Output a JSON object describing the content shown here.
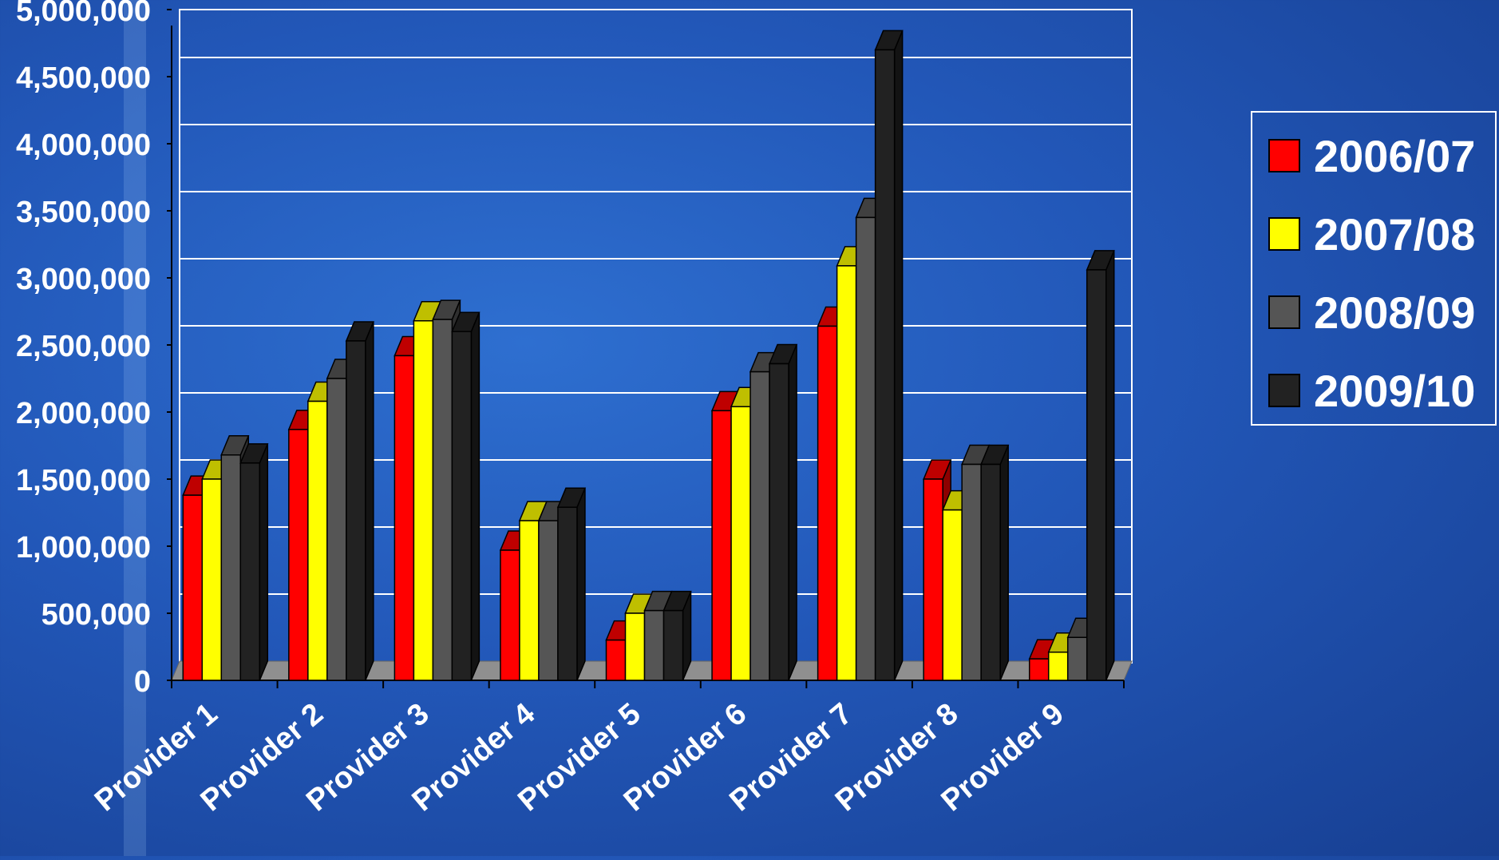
{
  "chart_data": {
    "type": "bar",
    "title": "",
    "xlabel": "",
    "ylabel": "",
    "categories": [
      "Provider 1",
      "Provider 2",
      "Provider 3",
      "Provider 4",
      "Provider 5",
      "Provider 6",
      "Provider 7",
      "Provider 8",
      "Provider 9"
    ],
    "ylim": [
      0,
      5000000
    ],
    "yticks": [
      0,
      500000,
      1000000,
      1500000,
      2000000,
      2500000,
      3000000,
      3500000,
      4000000,
      4500000,
      5000000
    ],
    "ytick_labels": [
      "0",
      "500,000",
      "1,000,000",
      "1,500,000",
      "2,000,000",
      "2,500,000",
      "3,000,000",
      "3,500,000",
      "4,000,000",
      "4,500,000",
      "5,000,000"
    ],
    "grid": true,
    "legend_position": "right",
    "series": [
      {
        "name": "2006/07",
        "color": "#ff0000",
        "values": [
          1380000,
          1870000,
          2420000,
          970000,
          300000,
          2010000,
          2640000,
          1500000,
          160000
        ]
      },
      {
        "name": "2007/08",
        "color": "#ffff00",
        "values": [
          1500000,
          2080000,
          2680000,
          1190000,
          500000,
          2040000,
          3090000,
          1270000,
          210000
        ]
      },
      {
        "name": "2008/09",
        "color": "#555555",
        "values": [
          1680000,
          2250000,
          2690000,
          1190000,
          520000,
          2300000,
          3450000,
          1610000,
          320000
        ]
      },
      {
        "name": "2009/10",
        "color": "#222222",
        "values": [
          1620000,
          2530000,
          2600000,
          1290000,
          520000,
          2360000,
          4700000,
          1610000,
          3060000
        ]
      }
    ]
  }
}
